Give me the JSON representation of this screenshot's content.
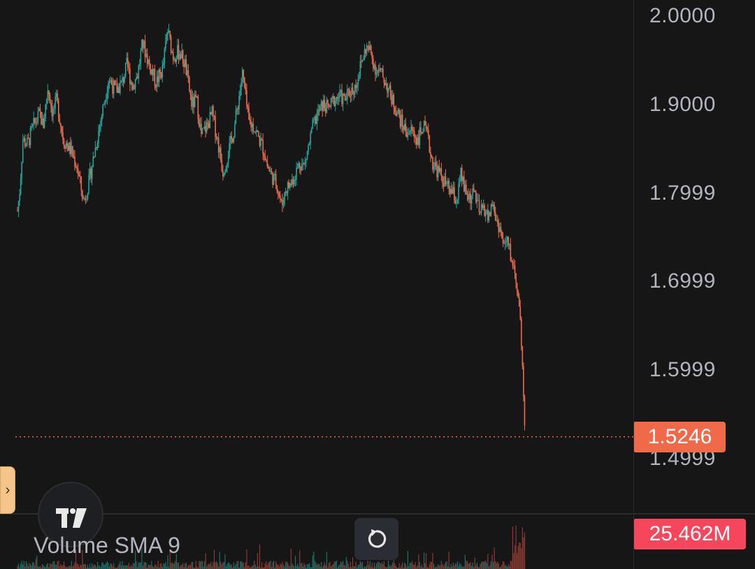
{
  "chart_data": {
    "type": "candlestick",
    "price_axis": {
      "ticks": [
        "2.0000",
        "1.9000",
        "1.7999",
        "1.6999",
        "1.5999",
        "1.4999"
      ],
      "range": [
        1.475,
        2.0185
      ]
    },
    "last_price": {
      "label": "1.5246",
      "value": 1.5246
    },
    "volume": {
      "indicator_title": "Volume SMA 9",
      "last_value_label": "25.462M"
    },
    "path": [
      [
        0,
        1.78
      ],
      [
        3,
        1.8
      ],
      [
        8,
        1.86
      ],
      [
        15,
        1.855
      ],
      [
        23,
        1.875
      ],
      [
        33,
        1.89
      ],
      [
        38,
        1.875
      ],
      [
        45,
        1.92
      ],
      [
        52,
        1.89
      ],
      [
        58,
        1.905
      ],
      [
        68,
        1.86
      ],
      [
        78,
        1.85
      ],
      [
        88,
        1.83
      ],
      [
        98,
        1.79
      ],
      [
        105,
        1.81
      ],
      [
        115,
        1.85
      ],
      [
        125,
        1.89
      ],
      [
        135,
        1.93
      ],
      [
        145,
        1.915
      ],
      [
        155,
        1.925
      ],
      [
        162,
        1.945
      ],
      [
        170,
        1.92
      ],
      [
        178,
        1.935
      ],
      [
        185,
        1.97
      ],
      [
        195,
        1.945
      ],
      [
        205,
        1.925
      ],
      [
        215,
        1.94
      ],
      [
        222,
        1.985
      ],
      [
        230,
        1.955
      ],
      [
        240,
        1.96
      ],
      [
        248,
        1.945
      ],
      [
        258,
        1.9
      ],
      [
        265,
        1.905
      ],
      [
        272,
        1.865
      ],
      [
        280,
        1.875
      ],
      [
        288,
        1.89
      ],
      [
        296,
        1.86
      ],
      [
        304,
        1.825
      ],
      [
        310,
        1.84
      ],
      [
        320,
        1.87
      ],
      [
        326,
        1.9
      ],
      [
        333,
        1.935
      ],
      [
        338,
        1.905
      ],
      [
        342,
        1.88
      ],
      [
        350,
        1.875
      ],
      [
        358,
        1.86
      ],
      [
        364,
        1.85
      ],
      [
        370,
        1.83
      ],
      [
        376,
        1.82
      ],
      [
        384,
        1.81
      ],
      [
        391,
        1.785
      ],
      [
        397,
        1.805
      ],
      [
        404,
        1.81
      ],
      [
        410,
        1.82
      ],
      [
        418,
        1.835
      ],
      [
        424,
        1.83
      ],
      [
        430,
        1.85
      ],
      [
        437,
        1.875
      ],
      [
        445,
        1.89
      ],
      [
        452,
        1.9
      ],
      [
        460,
        1.895
      ],
      [
        468,
        1.905
      ],
      [
        476,
        1.91
      ],
      [
        484,
        1.905
      ],
      [
        492,
        1.915
      ],
      [
        500,
        1.92
      ],
      [
        508,
        1.945
      ],
      [
        516,
        1.965
      ],
      [
        522,
        1.96
      ],
      [
        530,
        1.94
      ],
      [
        538,
        1.935
      ],
      [
        545,
        1.925
      ],
      [
        552,
        1.91
      ],
      [
        560,
        1.895
      ],
      [
        568,
        1.88
      ],
      [
        575,
        1.87
      ],
      [
        584,
        1.87
      ],
      [
        592,
        1.86
      ],
      [
        600,
        1.875
      ],
      [
        606,
        1.865
      ],
      [
        614,
        1.835
      ],
      [
        622,
        1.825
      ],
      [
        630,
        1.815
      ],
      [
        637,
        1.805
      ],
      [
        644,
        1.8
      ],
      [
        650,
        1.79
      ],
      [
        656,
        1.82
      ],
      [
        663,
        1.8
      ],
      [
        670,
        1.795
      ],
      [
        677,
        1.8
      ],
      [
        684,
        1.775
      ],
      [
        690,
        1.785
      ],
      [
        697,
        1.77
      ],
      [
        702,
        1.79
      ],
      [
        708,
        1.77
      ],
      [
        714,
        1.76
      ],
      [
        719,
        1.74
      ],
      [
        725,
        1.745
      ],
      [
        731,
        1.725
      ],
      [
        736,
        1.71
      ],
      [
        739,
        1.7
      ],
      [
        742,
        1.67
      ],
      [
        745,
        1.64
      ],
      [
        748,
        1.6
      ],
      [
        750,
        1.545
      ],
      [
        752,
        1.5246
      ]
    ]
  }
}
